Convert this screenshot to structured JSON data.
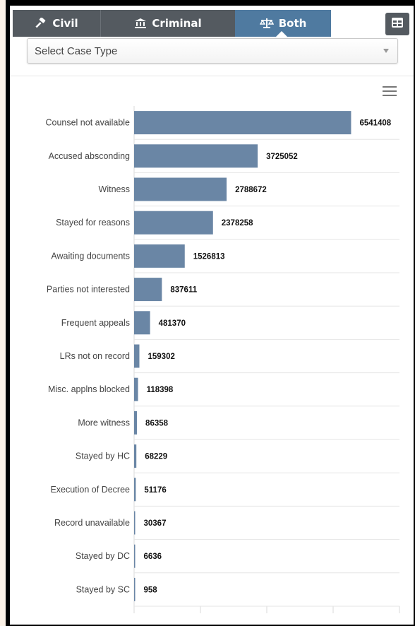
{
  "tabs": {
    "civil": "Civil",
    "criminal": "Criminal",
    "both": "Both",
    "active": "both"
  },
  "filter": {
    "case_type_selected": "Select Case Type"
  },
  "colors": {
    "bar": "#6a86a5",
    "tab_active": "#4f7aa0",
    "tab_inactive": "#545a60"
  },
  "chart_data": {
    "type": "bar",
    "orientation": "horizontal",
    "categories": [
      "Counsel not available",
      "Accused absconding",
      "Witness",
      "Stayed for reasons",
      "Awaiting documents",
      "Parties not interested",
      "Frequent appeals",
      "LRs not on record",
      "Misc. applns blocked",
      "More witness",
      "Stayed by HC",
      "Execution of Decree",
      "Record unavailable",
      "Stayed by DC",
      "Stayed by SC"
    ],
    "values": [
      6541408,
      3725052,
      2788672,
      2378258,
      1526813,
      837611,
      481370,
      159302,
      118398,
      86358,
      68229,
      51176,
      30367,
      6636,
      958
    ],
    "xlim": [
      0,
      8000000
    ],
    "data_labels": true,
    "grid": true
  }
}
